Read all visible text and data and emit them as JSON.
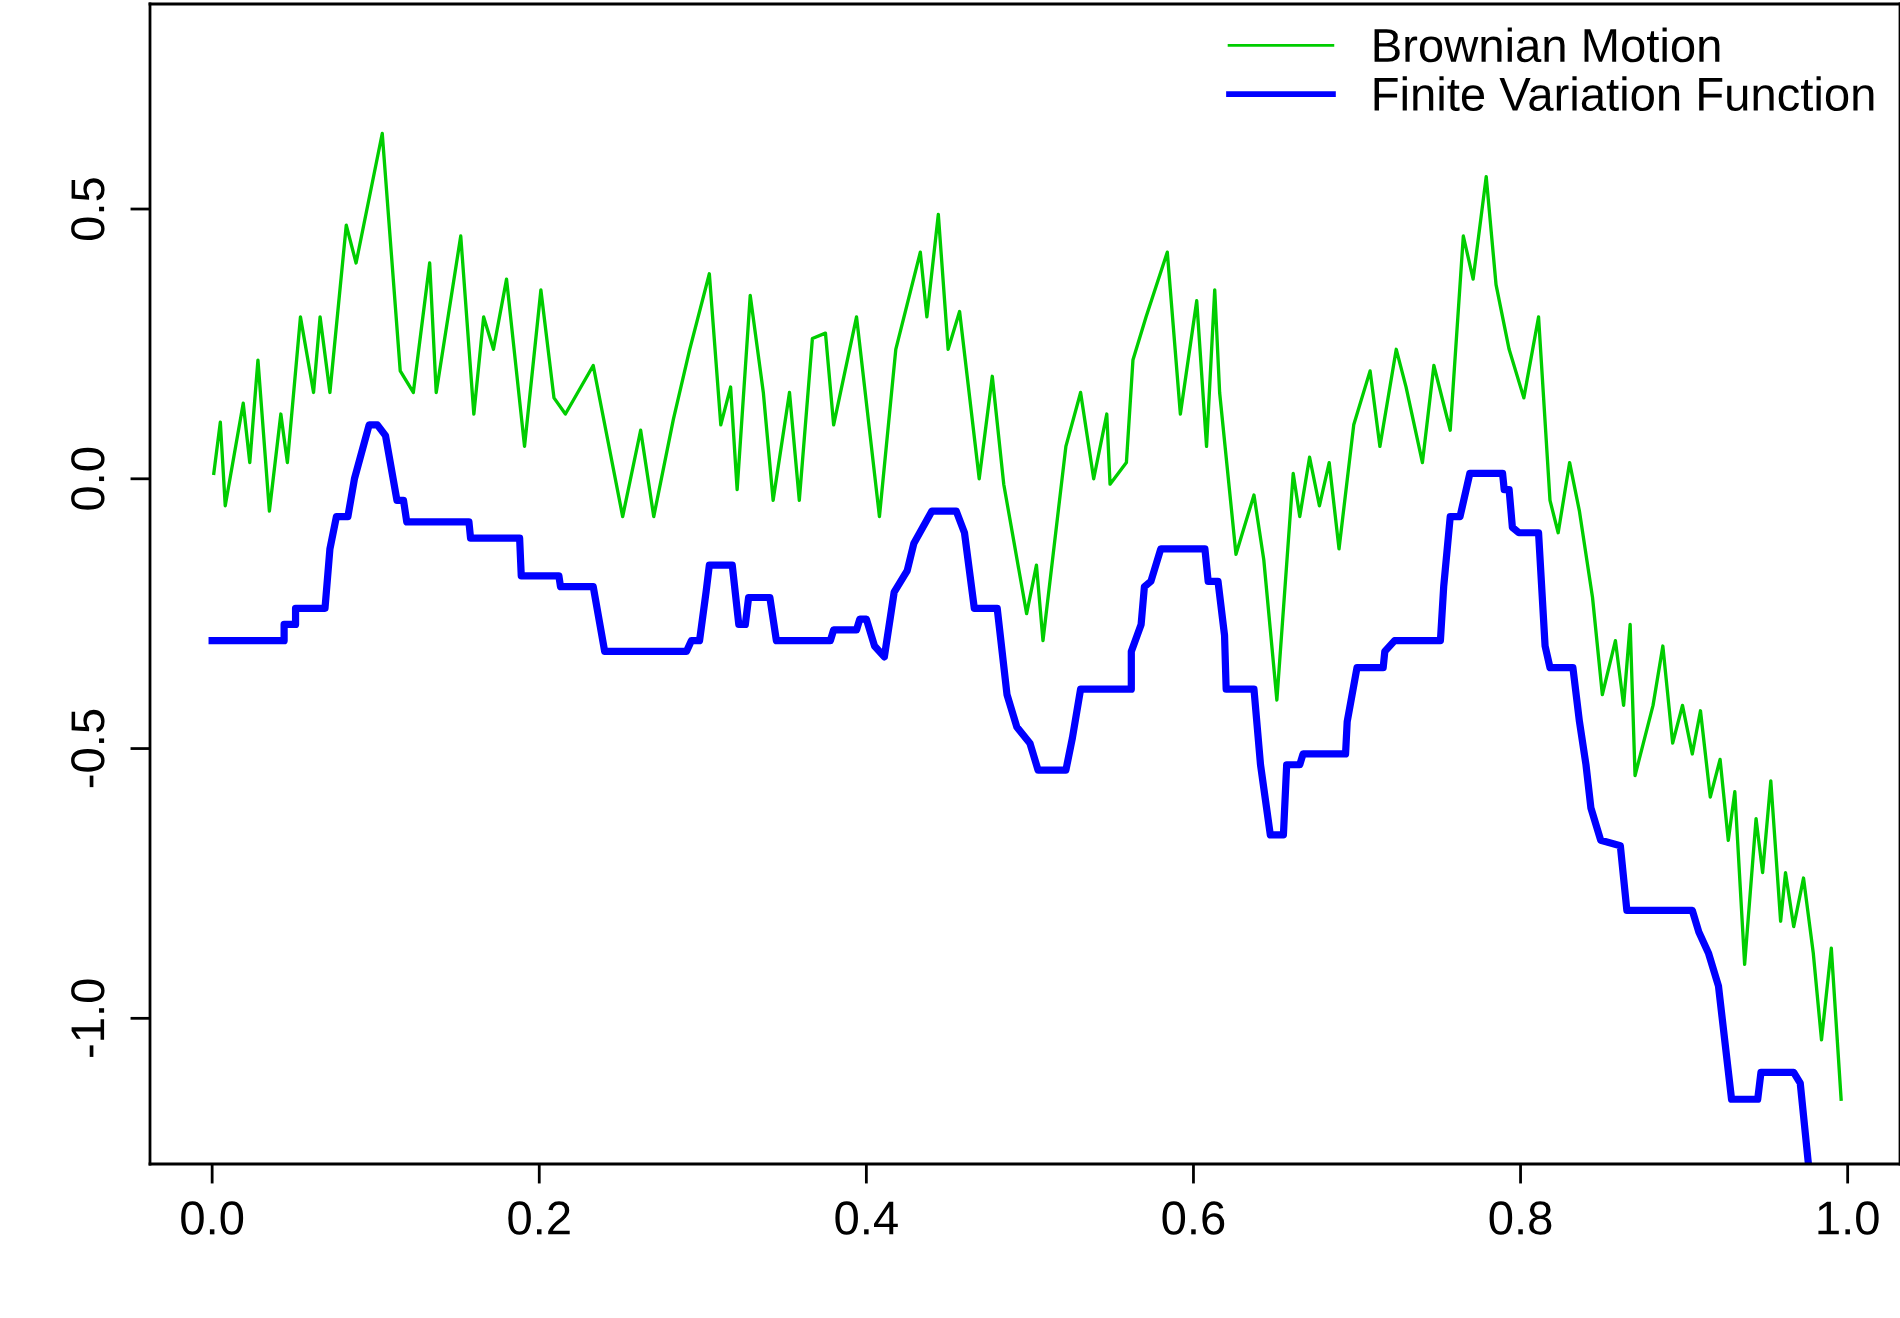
{
  "chart_data": {
    "type": "line",
    "xlim": [
      -0.038,
      1.032
    ],
    "ylim": [
      -1.27,
      0.88
    ],
    "xticks": [
      {
        "value": 0,
        "label": "0.0"
      },
      {
        "value": 0.2,
        "label": "0.2"
      },
      {
        "value": 0.4,
        "label": "0.4"
      },
      {
        "value": 0.6,
        "label": "0.6"
      },
      {
        "value": 0.8,
        "label": "0.8"
      },
      {
        "value": 1,
        "label": "1.0"
      }
    ],
    "yticks": [
      {
        "value": -1,
        "label": "-1.0"
      },
      {
        "value": -0.5,
        "label": "-0.5"
      },
      {
        "value": 0,
        "label": "0.0"
      },
      {
        "value": 0.5,
        "label": "0.5"
      }
    ],
    "grid": false,
    "legend": "top right",
    "marker": "none",
    "line_style": "solid",
    "series": [
      {
        "name": "Brownian Motion",
        "color": "#00cd00",
        "x": [
          0.001,
          0.005,
          0.008,
          0.019,
          0.023,
          0.028,
          0.035,
          0.042,
          0.046,
          0.054,
          0.062,
          0.066,
          0.072,
          0.082,
          0.088,
          0.104,
          0.115,
          0.123,
          0.133,
          0.137,
          0.152,
          0.16,
          0.166,
          0.172,
          0.18,
          0.191,
          0.201,
          0.209,
          0.216,
          0.233,
          0.251,
          0.262,
          0.27,
          0.282,
          0.292,
          0.304,
          0.311,
          0.317,
          0.321,
          0.329,
          0.337,
          0.343,
          0.353,
          0.359,
          0.367,
          0.375,
          0.38,
          0.394,
          0.408,
          0.418,
          0.433,
          0.437,
          0.444,
          0.45,
          0.457,
          0.469,
          0.477,
          0.484,
          0.498,
          0.504,
          0.508,
          0.522,
          0.531,
          0.539,
          0.547,
          0.549,
          0.559,
          0.563,
          0.571,
          0.584,
          0.592,
          0.602,
          0.608,
          0.613,
          0.616,
          0.626,
          0.637,
          0.643,
          0.651,
          0.661,
          0.665,
          0.671,
          0.677,
          0.683,
          0.689,
          0.698,
          0.708,
          0.714,
          0.724,
          0.73,
          0.74,
          0.747,
          0.757,
          0.765,
          0.771,
          0.779,
          0.785,
          0.793,
          0.802,
          0.811,
          0.818,
          0.823,
          0.83,
          0.836,
          0.844,
          0.85,
          0.858,
          0.863,
          0.867,
          0.87,
          0.881,
          0.887,
          0.893,
          0.899,
          0.905,
          0.91,
          0.916,
          0.922,
          0.927,
          0.931,
          0.937,
          0.944,
          0.948,
          0.953,
          0.959,
          0.962,
          0.967,
          0.973,
          0.979,
          0.984,
          0.99,
          0.996
        ],
        "values": [
          0.01,
          0.105,
          -0.05,
          0.14,
          0.03,
          0.22,
          -0.06,
          0.12,
          0.03,
          0.3,
          0.16,
          0.3,
          0.16,
          0.47,
          0.4,
          0.64,
          0.2,
          0.16,
          0.4,
          0.16,
          0.45,
          0.12,
          0.3,
          0.24,
          0.37,
          0.06,
          0.35,
          0.15,
          0.12,
          0.21,
          -0.07,
          0.09,
          -0.07,
          0.11,
          0.24,
          0.38,
          0.1,
          0.17,
          -0.02,
          0.34,
          0.16,
          -0.04,
          0.16,
          -0.04,
          0.26,
          0.27,
          0.1,
          0.3,
          -0.07,
          0.24,
          0.42,
          0.3,
          0.49,
          0.24,
          0.31,
          0.0,
          0.19,
          -0.01,
          -0.25,
          -0.16,
          -0.3,
          0.06,
          0.16,
          0.0,
          0.12,
          -0.01,
          0.03,
          0.22,
          0.3,
          0.42,
          0.12,
          0.33,
          0.06,
          0.35,
          0.16,
          -0.14,
          -0.03,
          -0.15,
          -0.41,
          0.01,
          -0.07,
          0.04,
          -0.05,
          0.03,
          -0.13,
          0.1,
          0.2,
          0.06,
          0.24,
          0.17,
          0.03,
          0.21,
          0.09,
          0.45,
          0.37,
          0.56,
          0.36,
          0.24,
          0.15,
          0.3,
          -0.04,
          -0.1,
          0.03,
          -0.06,
          -0.22,
          -0.4,
          -0.3,
          -0.42,
          -0.27,
          -0.55,
          -0.42,
          -0.31,
          -0.49,
          -0.42,
          -0.51,
          -0.43,
          -0.59,
          -0.52,
          -0.67,
          -0.58,
          -0.9,
          -0.63,
          -0.73,
          -0.56,
          -0.82,
          -0.73,
          -0.83,
          -0.74,
          -0.88,
          -1.04,
          -0.87,
          -1.15
        ]
      },
      {
        "name": "Finite Variation Function",
        "color": "#0000ff",
        "x": [
          0,
          0.044,
          0.044,
          0.051,
          0.051,
          0.069,
          0.072,
          0.076,
          0.083,
          0.087,
          0.096,
          0.101,
          0.106,
          0.113,
          0.117,
          0.119,
          0.157,
          0.158,
          0.188,
          0.189,
          0.212,
          0.213,
          0.233,
          0.24,
          0.29,
          0.293,
          0.298,
          0.302,
          0.304,
          0.318,
          0.322,
          0.326,
          0.328,
          0.341,
          0.345,
          0.378,
          0.38,
          0.394,
          0.396,
          0.4,
          0.405,
          0.411,
          0.417,
          0.425,
          0.429,
          0.44,
          0.455,
          0.46,
          0.466,
          0.48,
          0.486,
          0.492,
          0.5,
          0.505,
          0.522,
          0.526,
          0.531,
          0.562,
          0.562,
          0.568,
          0.57,
          0.574,
          0.58,
          0.607,
          0.609,
          0.615,
          0.619,
          0.62,
          0.637,
          0.641,
          0.647,
          0.655,
          0.657,
          0.665,
          0.667,
          0.693,
          0.694,
          0.7,
          0.716,
          0.717,
          0.723,
          0.751,
          0.753,
          0.757,
          0.763,
          0.769,
          0.789,
          0.79,
          0.793,
          0.795,
          0.799,
          0.811,
          0.815,
          0.818,
          0.832,
          0.836,
          0.84,
          0.843,
          0.849,
          0.861,
          0.865,
          0.905,
          0.909,
          0.915,
          0.921,
          0.929,
          0.945,
          0.947,
          0.967,
          0.971,
          0.976
        ],
        "values": [
          -0.3,
          -0.3,
          -0.27,
          -0.27,
          -0.24,
          -0.24,
          -0.13,
          -0.07,
          -0.07,
          0.0,
          0.1,
          0.1,
          0.08,
          -0.04,
          -0.04,
          -0.08,
          -0.08,
          -0.11,
          -0.11,
          -0.18,
          -0.18,
          -0.2,
          -0.2,
          -0.32,
          -0.32,
          -0.3,
          -0.3,
          -0.21,
          -0.16,
          -0.16,
          -0.27,
          -0.27,
          -0.22,
          -0.22,
          -0.3,
          -0.3,
          -0.28,
          -0.28,
          -0.26,
          -0.26,
          -0.31,
          -0.33,
          -0.21,
          -0.17,
          -0.12,
          -0.06,
          -0.06,
          -0.1,
          -0.24,
          -0.24,
          -0.4,
          -0.46,
          -0.49,
          -0.54,
          -0.54,
          -0.48,
          -0.39,
          -0.39,
          -0.32,
          -0.27,
          -0.2,
          -0.19,
          -0.13,
          -0.13,
          -0.19,
          -0.19,
          -0.29,
          -0.39,
          -0.39,
          -0.53,
          -0.66,
          -0.66,
          -0.53,
          -0.53,
          -0.51,
          -0.51,
          -0.45,
          -0.35,
          -0.35,
          -0.32,
          -0.3,
          -0.3,
          -0.2,
          -0.07,
          -0.07,
          0.01,
          0.01,
          -0.02,
          -0.02,
          -0.09,
          -0.1,
          -0.1,
          -0.31,
          -0.35,
          -0.35,
          -0.45,
          -0.53,
          -0.61,
          -0.67,
          -0.68,
          -0.8,
          -0.8,
          -0.84,
          -0.88,
          -0.94,
          -1.15,
          -1.15,
          -1.1,
          -1.1,
          -1.12,
          -1.27
        ]
      }
    ]
  }
}
